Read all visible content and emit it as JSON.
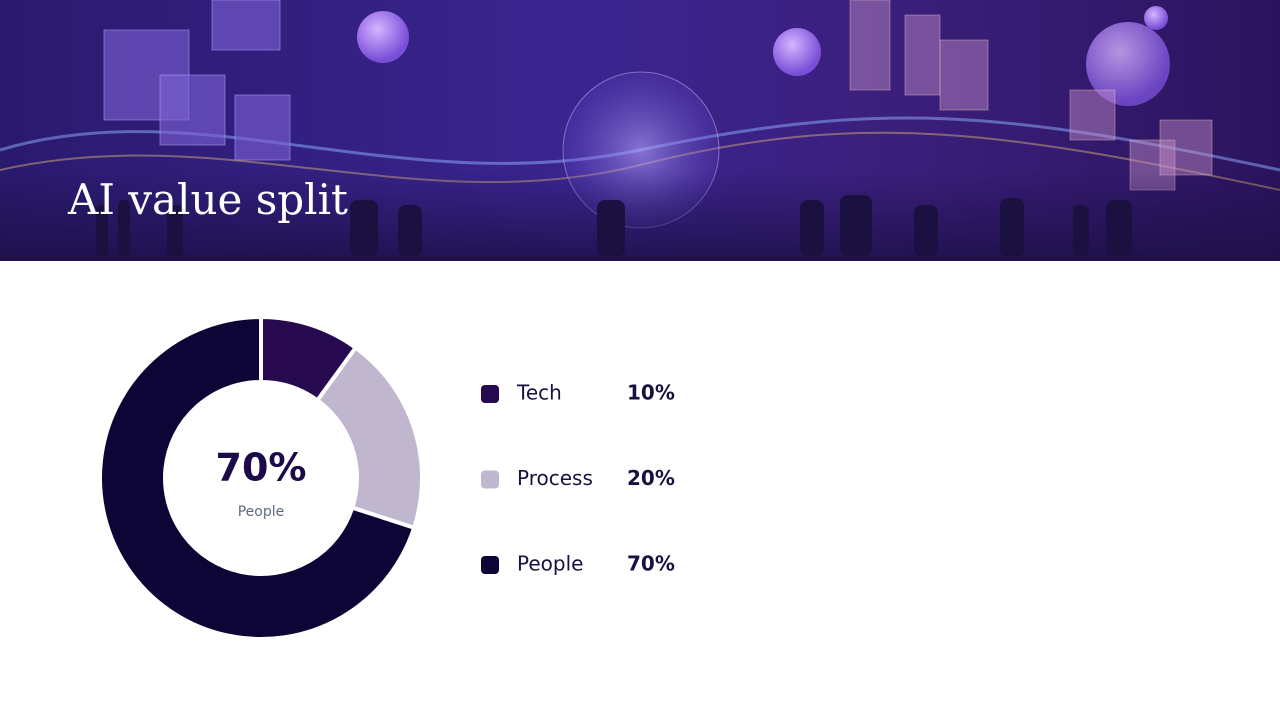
{
  "chart_data": {
    "type": "donut",
    "title": "AI value split",
    "categories": [
      "Tech",
      "Process",
      "People"
    ],
    "values": [
      10,
      20,
      70
    ],
    "value_labels": [
      "10%",
      "20%",
      "70%"
    ],
    "colors": [
      "#27094f",
      "#c0b7cf",
      "#0c0535"
    ],
    "center_label": "70%",
    "center_caption": "People"
  }
}
